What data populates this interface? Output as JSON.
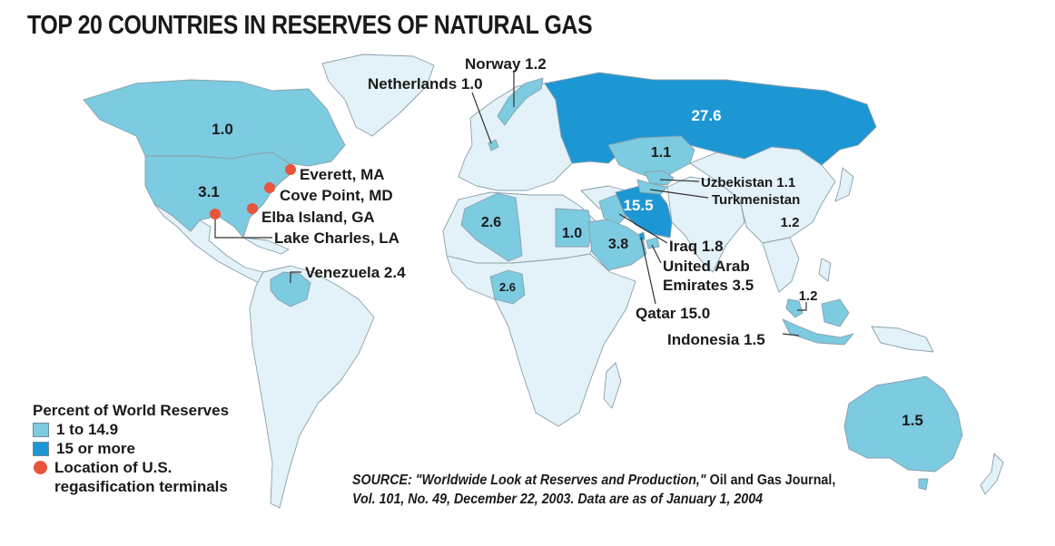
{
  "title": "TOP 20 COUNTRIES IN RESERVES OF NATURAL GAS",
  "colors": {
    "base": "#e3f1f8",
    "tier1": "#7ccbe0",
    "tier2": "#1d96d4",
    "terminal": "#e8553a",
    "border": "#8aa0ab"
  },
  "labels": {
    "canada": "1.0",
    "usa": "3.1",
    "russia": "27.6",
    "kazakhstan": "1.1",
    "iran": "15.5",
    "algeria": "2.6",
    "egypt": "1.0",
    "saudi": "3.8",
    "nigeria": "2.6",
    "australia": "1.5",
    "china": "1.2",
    "malaysia": "1.2",
    "norway": "Norway 1.2",
    "netherlands": "Netherlands 1.0",
    "uzbekistan": "Uzbekistan 1.1",
    "turkmenistan": "Turkmenistan",
    "iraq": "Iraq 1.8",
    "uae_line1": "United Arab",
    "uae_line2": "Emirates 3.5",
    "qatar": "Qatar 15.0",
    "indonesia": "Indonesia 1.5",
    "venezuela": "Venezuela 2.4",
    "everett": "Everett, MA",
    "cove_point": "Cove Point, MD",
    "elba_island": "Elba Island, GA",
    "lake_charles": "Lake Charles, LA"
  },
  "legend": {
    "heading": "Percent of World Reserves",
    "tier1": "1 to 14.9",
    "tier2": "15 or more",
    "terminals_line1": "Location of U.S.",
    "terminals_line2": "regasification terminals"
  },
  "source": {
    "line1_prefix": "SOURCE: \"Worldwide Look at Reserves and Production,\"",
    "line1_journal": "Oil and Gas Journal,",
    "line2": "Vol. 101, No. 49, December 22, 2003. Data are as of January 1, 2004"
  }
}
